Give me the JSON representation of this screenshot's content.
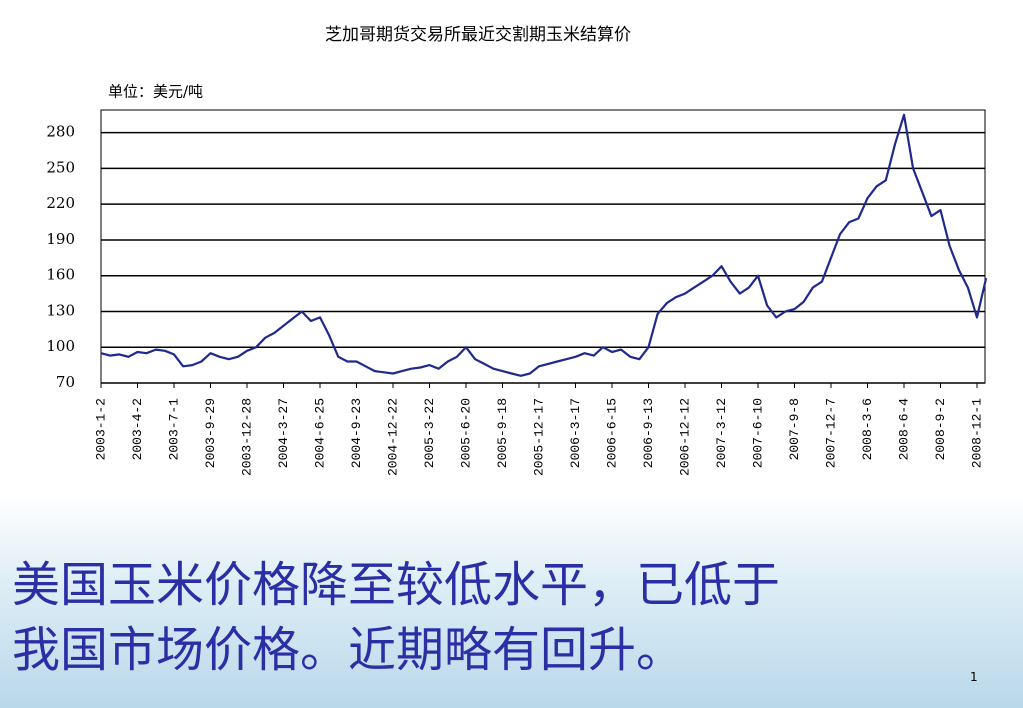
{
  "chart_data": {
    "type": "line",
    "title": "芝加哥期货交易所最近交割期玉米结算价",
    "unit_label": "单位：美元/吨",
    "categories": [
      "2003-1-2",
      null,
      null,
      null,
      "2003-4-2",
      null,
      null,
      null,
      "2003-7-1",
      null,
      null,
      null,
      "2003-9-29",
      null,
      null,
      null,
      "2003-12-28",
      null,
      null,
      null,
      "2004-3-27",
      null,
      null,
      null,
      "2004-6-25",
      null,
      null,
      null,
      "2004-9-23",
      null,
      null,
      null,
      "2004-12-22",
      null,
      null,
      null,
      "2005-3-22",
      null,
      null,
      null,
      "2005-6-20",
      null,
      null,
      null,
      "2005-9-18",
      null,
      null,
      null,
      "2005-12-17",
      null,
      null,
      null,
      "2006-3-17",
      null,
      null,
      null,
      "2006-6-15",
      null,
      null,
      null,
      "2006-9-13",
      null,
      null,
      null,
      "2006-12-12",
      null,
      null,
      null,
      "2007-3-12",
      null,
      null,
      null,
      "2007-6-10",
      null,
      null,
      null,
      "2007-9-8",
      null,
      null,
      null,
      "2007-12-7",
      null,
      null,
      null,
      "2008-3-6",
      null,
      null,
      null,
      "2008-6-4",
      null,
      null,
      null,
      "2008-9-2",
      null,
      null,
      null,
      "2008-12-1",
      null
    ],
    "values": [
      95,
      93,
      94,
      92,
      96,
      95,
      98,
      97,
      94,
      84,
      85,
      88,
      95,
      92,
      90,
      92,
      97,
      100,
      108,
      112,
      118,
      124,
      130,
      122,
      125,
      110,
      92,
      88,
      88,
      84,
      80,
      79,
      78,
      80,
      82,
      83,
      85,
      82,
      88,
      92,
      100,
      90,
      86,
      82,
      80,
      78,
      76,
      78,
      84,
      86,
      88,
      90,
      92,
      95,
      93,
      100,
      96,
      98,
      92,
      90,
      100,
      128,
      137,
      142,
      145,
      150,
      155,
      160,
      168,
      155,
      145,
      150,
      160,
      135,
      125,
      130,
      132,
      138,
      150,
      155,
      175,
      195,
      205,
      208,
      225,
      235,
      240,
      270,
      295,
      250,
      230,
      210,
      215,
      185,
      165,
      150,
      125,
      158
    ],
    "color": "#1f2a8c",
    "ylim": [
      70,
      299
    ],
    "yticks": [
      70,
      100,
      130,
      160,
      190,
      220,
      250,
      280
    ],
    "grid": true
  },
  "slide": {
    "caption_lines": [
      "美国玉米价格降至较低水平，已低于",
      "我国市场价格。近期略有回升。"
    ],
    "page_number": "1"
  }
}
